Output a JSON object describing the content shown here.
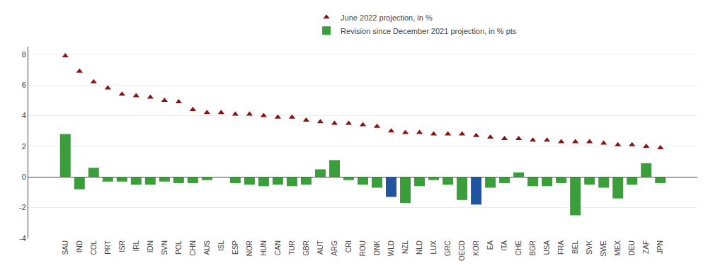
{
  "chart_data": {
    "type": "bar",
    "categories": [
      "SAU",
      "IND",
      "COL",
      "PRT",
      "ISR",
      "IRL",
      "IDN",
      "SVN",
      "POL",
      "CHN",
      "AUS",
      "ISL",
      "ESP",
      "NOR",
      "HUN",
      "CAN",
      "TUR",
      "GBR",
      "AUT",
      "ARG",
      "CRI",
      "ROU",
      "DNK",
      "WLD",
      "NZL",
      "NLD",
      "LUX",
      "GRC",
      "OECD",
      "KOR",
      "EA",
      "ITA",
      "CHE",
      "BGR",
      "USA",
      "FRA",
      "BEL",
      "SVK",
      "SWE",
      "MEX",
      "DEU",
      "ZAF",
      "JPN"
    ],
    "series": [
      {
        "name": "June 2022 projection, in %",
        "type": "scatter",
        "marker": "triangle-up",
        "color": "#8b1010",
        "values": [
          7.9,
          6.9,
          6.2,
          5.8,
          5.4,
          5.3,
          5.2,
          5.0,
          4.9,
          4.4,
          4.2,
          4.2,
          4.1,
          4.1,
          4.0,
          3.9,
          3.9,
          3.7,
          3.6,
          3.5,
          3.5,
          3.4,
          3.3,
          3.0,
          2.9,
          2.9,
          2.8,
          2.8,
          2.8,
          2.7,
          2.6,
          2.5,
          2.5,
          2.4,
          2.4,
          2.3,
          2.3,
          2.3,
          2.2,
          2.1,
          2.1,
          2.0,
          1.9
        ]
      },
      {
        "name": "Revision since December 2021 projection, in % pts",
        "type": "bar",
        "colors": [
          "#3a9e3a",
          "#3a9e3a",
          "#3a9e3a",
          "#3a9e3a",
          "#3a9e3a",
          "#3a9e3a",
          "#3a9e3a",
          "#3a9e3a",
          "#3a9e3a",
          "#3a9e3a",
          "#3a9e3a",
          "#3a9e3a",
          "#3a9e3a",
          "#3a9e3a",
          "#3a9e3a",
          "#3a9e3a",
          "#3a9e3a",
          "#3a9e3a",
          "#3a9e3a",
          "#3a9e3a",
          "#3a9e3a",
          "#3a9e3a",
          "#3a9e3a",
          "#2255a0",
          "#3a9e3a",
          "#3a9e3a",
          "#3a9e3a",
          "#3a9e3a",
          "#3a9e3a",
          "#2255a0",
          "#3a9e3a",
          "#3a9e3a",
          "#3a9e3a",
          "#3a9e3a",
          "#3a9e3a",
          "#3a9e3a",
          "#3a9e3a",
          "#3a9e3a",
          "#3a9e3a",
          "#3a9e3a",
          "#3a9e3a",
          "#3a9e3a",
          "#3a9e3a"
        ],
        "values": [
          2.8,
          -0.8,
          0.6,
          -0.3,
          -0.3,
          -0.5,
          -0.5,
          -0.3,
          -0.4,
          -0.4,
          -0.2,
          0.0,
          -0.4,
          -0.5,
          -0.6,
          -0.5,
          -0.6,
          -0.5,
          0.5,
          1.1,
          -0.2,
          -0.5,
          -0.7,
          -1.3,
          -1.7,
          -0.6,
          -0.2,
          -0.5,
          -1.5,
          -1.8,
          -0.7,
          -0.4,
          0.3,
          -0.6,
          -0.6,
          -0.4,
          -2.5,
          -0.5,
          -0.7,
          -1.4,
          -0.5,
          0.9,
          -0.4
        ]
      }
    ],
    "ylim": [
      -4,
      8.5
    ],
    "yticks": [
      -4,
      -2,
      0,
      2,
      4,
      6,
      8
    ],
    "grid": true,
    "legend": "top"
  }
}
